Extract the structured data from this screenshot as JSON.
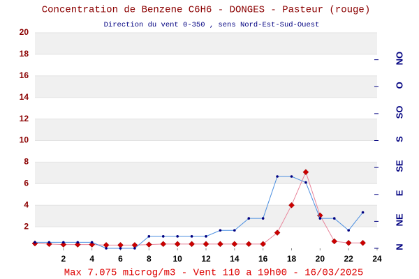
{
  "chart_data": {
    "type": "line",
    "title": "Concentration de Benzene C6H6  -   DONGES - Pasteur (rouge)",
    "subtitle": "Direction du vent 0-350 , sens Nord-Est-Sud-Ouest",
    "footer": "Max 7.075 microg/m3 - Vent 110  a 19h00 - 16/03/2025",
    "x": [
      0,
      1,
      2,
      3,
      4,
      5,
      6,
      7,
      8,
      9,
      10,
      11,
      12,
      13,
      14,
      15,
      16,
      17,
      18,
      19,
      20,
      21,
      22,
      23
    ],
    "xlim": [
      0,
      24
    ],
    "xticks": [
      2,
      4,
      6,
      8,
      10,
      12,
      14,
      16,
      18,
      20,
      22,
      24
    ],
    "ylim": [
      0,
      20
    ],
    "yticks": [
      2,
      4,
      6,
      8,
      10,
      12,
      14,
      16,
      18,
      20
    ],
    "y2lim": [
      0,
      360
    ],
    "y2ticks": [
      {
        "value": 0,
        "label": "N"
      },
      {
        "value": 45,
        "label": "NE"
      },
      {
        "value": 90,
        "label": "E"
      },
      {
        "value": 135,
        "label": "SE"
      },
      {
        "value": 180,
        "label": "S"
      },
      {
        "value": 225,
        "label": "SO"
      },
      {
        "value": 270,
        "label": "O"
      },
      {
        "value": 315,
        "label": "NO"
      }
    ],
    "grid": true,
    "series": [
      {
        "name": "Benzene",
        "color": "#cc0000",
        "values": [
          0.45,
          0.4,
          0.35,
          0.35,
          0.35,
          0.3,
          0.3,
          0.3,
          0.35,
          0.4,
          0.4,
          0.4,
          0.4,
          0.4,
          0.4,
          0.4,
          0.4,
          1.45,
          4.0,
          7.075,
          3.05,
          0.65,
          0.5,
          0.5
        ]
      },
      {
        "name": "Vent",
        "color": "#000080",
        "axis": "y2",
        "values": [
          10,
          10,
          10,
          10,
          10,
          0,
          0,
          0,
          20,
          20,
          20,
          20,
          20,
          30,
          30,
          50,
          50,
          120,
          120,
          110,
          50,
          50,
          30,
          60
        ]
      }
    ]
  }
}
